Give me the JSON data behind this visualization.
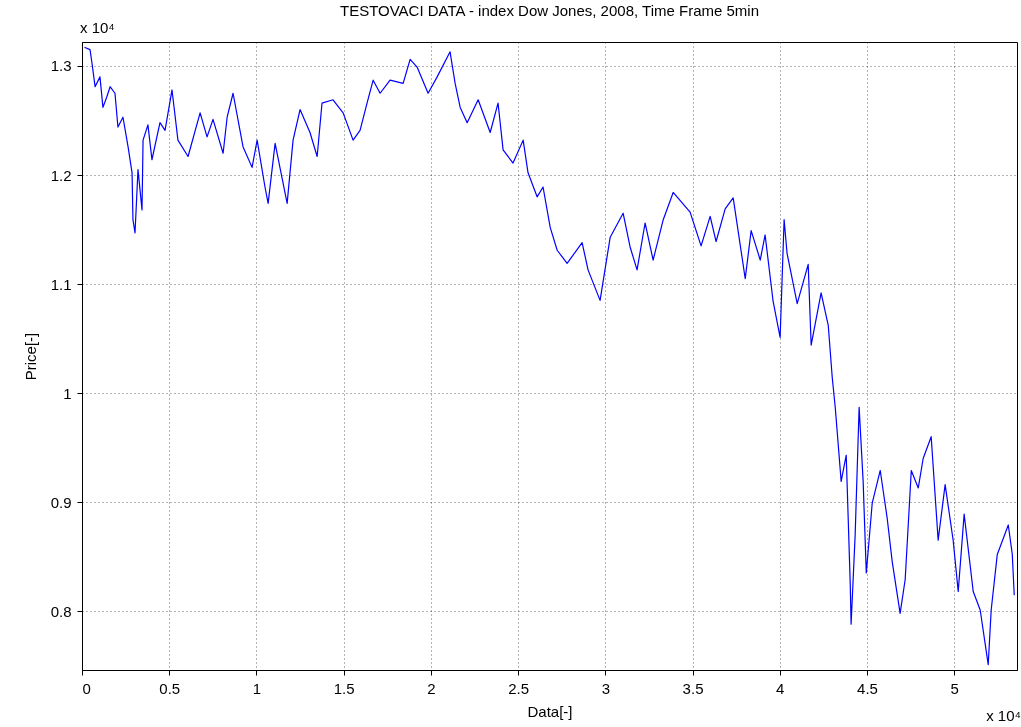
{
  "chart_data": {
    "type": "line",
    "title": "TESTOVACI DATA - index Dow Jones, 2008, Time Frame 5min",
    "xlabel": "Data[-]",
    "ylabel": "Price[-]",
    "annotations": [
      "x 10⁴",
      "x 10⁴"
    ],
    "xlim": [
      0,
      5.36
    ],
    "ylim": [
      0.746,
      1.322
    ],
    "xticks": [
      0,
      0.5,
      1,
      1.5,
      2,
      2.5,
      3,
      3.5,
      4,
      4.5,
      5
    ],
    "yticks": [
      0.8,
      0.9,
      1,
      1.1,
      1.2,
      1.3
    ],
    "grid": true,
    "line_style": "solid",
    "series": [
      {
        "color": "#0000ff",
        "x": [
          0.017,
          0.046,
          0.057,
          0.075,
          0.103,
          0.12,
          0.143,
          0.161,
          0.189,
          0.206,
          0.235,
          0.264,
          0.287,
          0.292,
          0.304,
          0.321,
          0.344,
          0.35,
          0.378,
          0.401,
          0.447,
          0.476,
          0.516,
          0.55,
          0.608,
          0.677,
          0.717,
          0.751,
          0.809,
          0.832,
          0.866,
          0.923,
          0.975,
          1.004,
          1.049,
          1.067,
          1.107,
          1.176,
          1.21,
          1.25,
          1.307,
          1.348,
          1.376,
          1.439,
          1.497,
          1.554,
          1.594,
          1.634,
          1.669,
          1.709,
          1.766,
          1.841,
          1.881,
          1.921,
          1.984,
          2.036,
          2.11,
          2.139,
          2.168,
          2.208,
          2.271,
          2.34,
          2.385,
          2.414,
          2.471,
          2.529,
          2.557,
          2.609,
          2.643,
          2.684,
          2.724,
          2.781,
          2.867,
          2.901,
          2.97,
          3.028,
          3.102,
          3.142,
          3.182,
          3.228,
          3.274,
          3.332,
          3.389,
          3.486,
          3.549,
          3.601,
          3.635,
          3.687,
          3.733,
          3.802,
          3.836,
          3.888,
          3.916,
          3.962,
          4.002,
          4.025,
          4.042,
          4.1,
          4.163,
          4.18,
          4.237,
          4.278,
          4.301,
          4.318,
          4.352,
          4.381,
          4.404,
          4.409,
          4.432,
          4.455,
          4.478,
          4.496,
          4.53,
          4.576,
          4.616,
          4.645,
          4.69,
          4.719,
          4.754,
          4.794,
          4.822,
          4.868,
          4.908,
          4.948,
          4.994,
          5.023,
          5.057,
          5.109,
          5.149,
          5.195,
          5.212,
          5.247,
          5.31,
          5.333,
          5.344
        ],
        "values": [
          1.317,
          1.315,
          1.303,
          1.281,
          1.29,
          1.262,
          1.272,
          1.281,
          1.275,
          1.244,
          1.253,
          1.226,
          1.202,
          1.159,
          1.147,
          1.205,
          1.168,
          1.232,
          1.246,
          1.214,
          1.248,
          1.241,
          1.278,
          1.232,
          1.217,
          1.257,
          1.235,
          1.251,
          1.22,
          1.253,
          1.275,
          1.226,
          1.207,
          1.232,
          1.189,
          1.174,
          1.229,
          1.174,
          1.232,
          1.26,
          1.239,
          1.217,
          1.266,
          1.269,
          1.257,
          1.232,
          1.241,
          1.266,
          1.287,
          1.275,
          1.287,
          1.284,
          1.306,
          1.299,
          1.275,
          1.29,
          1.313,
          1.284,
          1.262,
          1.248,
          1.269,
          1.239,
          1.266,
          1.223,
          1.211,
          1.232,
          1.202,
          1.18,
          1.189,
          1.152,
          1.131,
          1.119,
          1.138,
          1.113,
          1.085,
          1.143,
          1.165,
          1.134,
          1.113,
          1.156,
          1.122,
          1.159,
          1.184,
          1.166,
          1.135,
          1.162,
          1.139,
          1.169,
          1.179,
          1.105,
          1.149,
          1.122,
          1.145,
          1.084,
          1.051,
          1.159,
          1.128,
          1.082,
          1.118,
          1.044,
          1.092,
          1.062,
          1.014,
          0.987,
          0.919,
          0.943,
          0.825,
          0.788,
          0.869,
          0.987,
          0.919,
          0.835,
          0.899,
          0.929,
          0.885,
          0.845,
          0.798,
          0.829,
          0.929,
          0.913,
          0.94,
          0.96,
          0.865,
          0.916,
          0.865,
          0.818,
          0.889,
          0.818,
          0.801,
          0.751,
          0.801,
          0.852,
          0.879,
          0.852,
          0.815
        ]
      }
    ]
  }
}
